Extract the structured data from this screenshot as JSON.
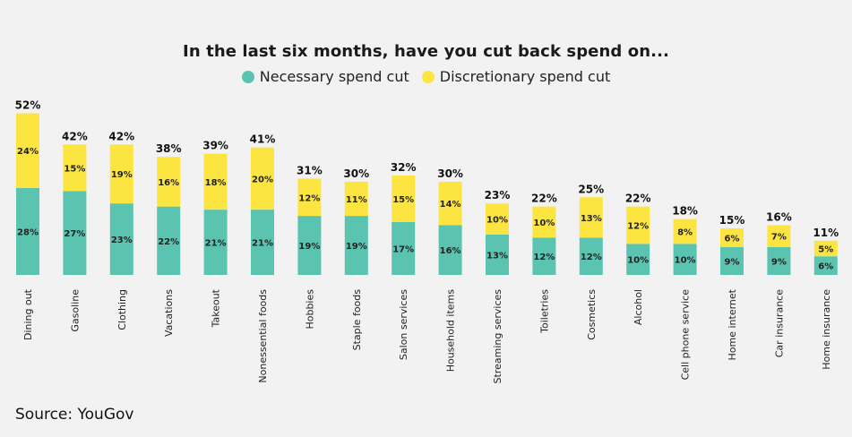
{
  "chart_data": {
    "type": "bar",
    "stacked": true,
    "title": "In the last six months, have you cut back spend on...",
    "categories": [
      "Dining out",
      "Gasoline",
      "Clothing",
      "Vacations",
      "Takeout",
      "Nonessential foods",
      "Hobbies",
      "Staple foods",
      "Salon services",
      "Household items",
      "Streaming services",
      "Toiletries",
      "Cosmetics",
      "Alcohol",
      "Cell phone service",
      "Home internet",
      "Car insurance",
      "Home insurance"
    ],
    "series": [
      {
        "name": "Necessary spend cut",
        "color": "#5bc4b1",
        "values": [
          28,
          27,
          23,
          22,
          21,
          21,
          19,
          19,
          17,
          16,
          13,
          12,
          12,
          10,
          10,
          9,
          9,
          6
        ]
      },
      {
        "name": "Discretionary spend cut",
        "color": "#fde541",
        "values": [
          24,
          15,
          19,
          16,
          18,
          20,
          12,
          11,
          15,
          14,
          10,
          10,
          13,
          12,
          8,
          6,
          7,
          5
        ]
      }
    ],
    "totals": [
      52,
      42,
      42,
      38,
      39,
      41,
      31,
      30,
      32,
      30,
      23,
      22,
      25,
      22,
      18,
      15,
      16,
      11
    ],
    "value_suffix": "%",
    "legend_position": "top-center",
    "grid": false
  },
  "source": "Source: YouGov"
}
